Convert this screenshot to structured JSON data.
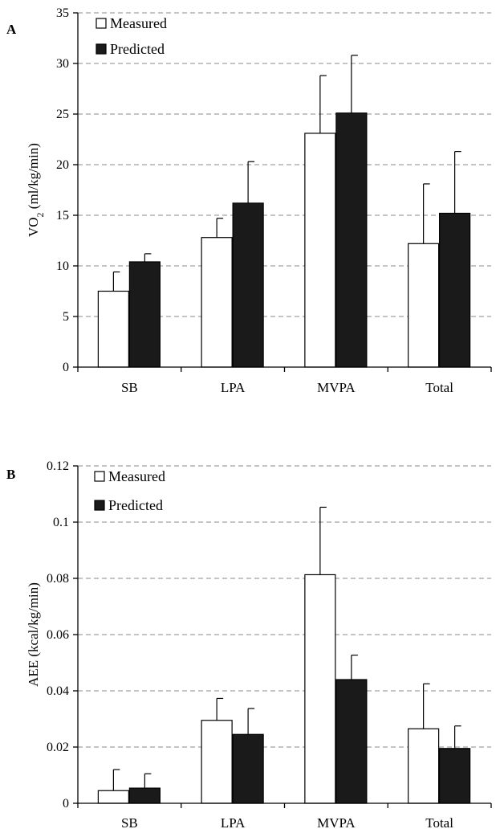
{
  "chart_data": [
    {
      "panel": "A",
      "type": "bar",
      "categories": [
        "SB",
        "LPA",
        "MVPA",
        "Total"
      ],
      "series": [
        {
          "name": "Measured",
          "values": [
            7.5,
            12.8,
            23.1,
            12.2
          ],
          "error_upper": [
            1.9,
            1.9,
            5.7,
            5.9
          ],
          "color": "#ffffff"
        },
        {
          "name": "Predicted",
          "values": [
            10.4,
            16.2,
            25.1,
            15.2
          ],
          "error_upper": [
            0.8,
            4.1,
            5.7,
            6.1
          ],
          "color": "#1a1a1a"
        }
      ],
      "ylabel": "VO",
      "ylabel_sub": "2",
      "ylabel_unit": " (ml/kg/min)",
      "ylim": [
        0,
        35
      ],
      "yticks": [
        0,
        5,
        10,
        15,
        20,
        25,
        30,
        35
      ],
      "ytick_labels": [
        "0",
        "5",
        "10",
        "15",
        "20",
        "25",
        "30",
        "35"
      ],
      "grid": true,
      "legend": "top-left"
    },
    {
      "panel": "B",
      "type": "bar",
      "categories": [
        "SB",
        "LPA",
        "MVPA",
        "Total"
      ],
      "series": [
        {
          "name": "Measured",
          "values": [
            0.0045,
            0.0295,
            0.0813,
            0.0265
          ],
          "error_upper": [
            0.0075,
            0.0078,
            0.024,
            0.016
          ],
          "color": "#ffffff"
        },
        {
          "name": "Predicted",
          "values": [
            0.0054,
            0.0245,
            0.044,
            0.0195
          ],
          "error_upper": [
            0.0051,
            0.0092,
            0.0087,
            0.008
          ],
          "color": "#1a1a1a"
        }
      ],
      "ylabel": "AEE (kcal/kg/min)",
      "ylim": [
        0,
        0.12
      ],
      "yticks": [
        0,
        0.02,
        0.04,
        0.06,
        0.08,
        0.1,
        0.12
      ],
      "ytick_labels": [
        "0",
        "0.02",
        "0.04",
        "0.06",
        "0.08",
        "0.1",
        "0.12"
      ],
      "grid": true,
      "legend": "top-left"
    }
  ]
}
